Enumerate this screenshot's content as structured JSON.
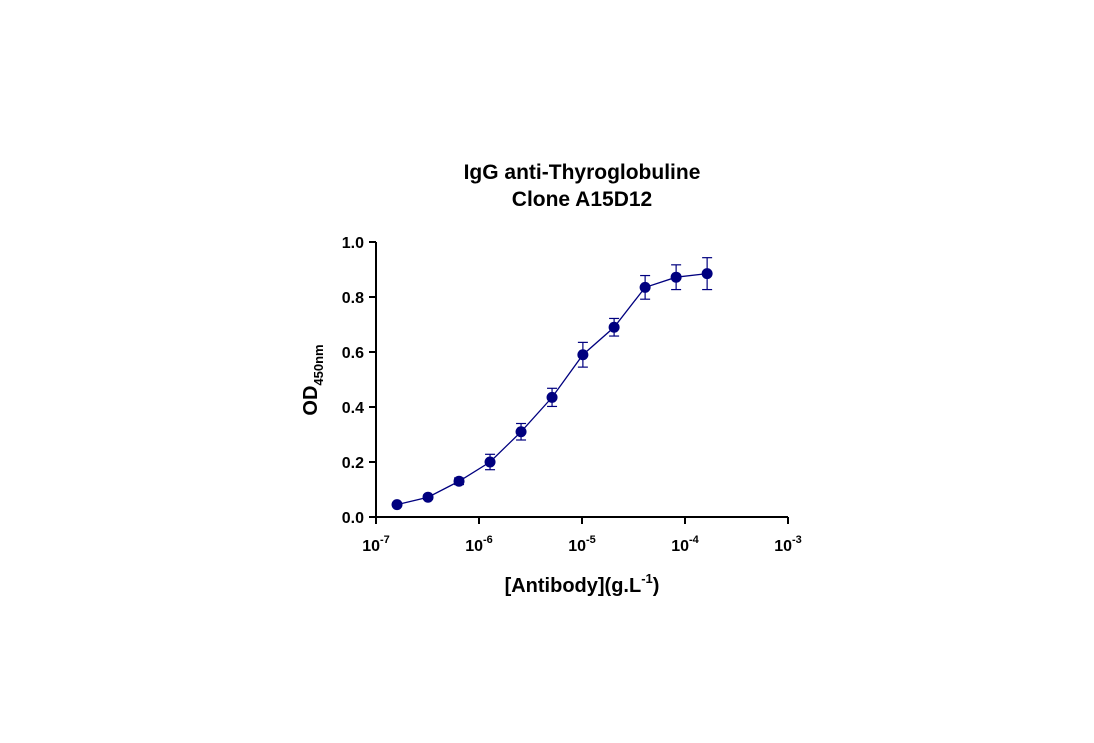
{
  "chart_data": {
    "type": "scatter",
    "title": [
      "IgG anti-Thyroglobuline",
      "Clone A15D12"
    ],
    "xlabel": {
      "main": "[Antibody](g.L",
      "sup": "-1",
      "tail": ")"
    },
    "ylabel": {
      "main": "OD",
      "sub": "450nm"
    },
    "xscale": "log10",
    "xlim": [
      1e-07,
      0.001
    ],
    "ylim": [
      0,
      1.0
    ],
    "xticks": [
      {
        "value": 1e-07,
        "base": "10",
        "exp": "-7"
      },
      {
        "value": 1e-06,
        "base": "10",
        "exp": "-6"
      },
      {
        "value": 1e-05,
        "base": "10",
        "exp": "-5"
      },
      {
        "value": 0.0001,
        "base": "10",
        "exp": "-4"
      },
      {
        "value": 0.001,
        "base": "10",
        "exp": "-3"
      }
    ],
    "yticks": [
      "0.0",
      "0.2",
      "0.4",
      "0.6",
      "0.8",
      "1.0"
    ],
    "grid": false,
    "color": "#00007f",
    "series": [
      {
        "connected": true,
        "x": [
          1.6e-07,
          3.2e-07,
          6.4e-07,
          1.28e-06,
          2.56e-06,
          5.12e-06,
          1.02e-05,
          2.05e-05,
          4.1e-05,
          8.2e-05,
          0.000164
        ],
        "y": [
          0.045,
          0.072,
          0.13,
          0.2,
          0.31,
          0.435,
          0.59,
          0.69,
          0.835,
          0.872,
          0.885
        ],
        "error": [
          0.006,
          0.008,
          0.012,
          0.028,
          0.03,
          0.033,
          0.045,
          0.032,
          0.043,
          0.045,
          0.058
        ]
      }
    ]
  }
}
